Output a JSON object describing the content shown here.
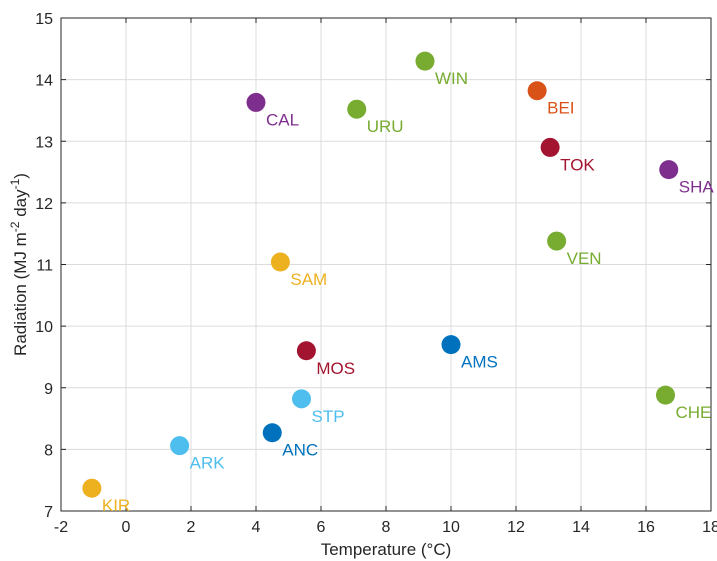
{
  "chart_data": {
    "type": "scatter",
    "xlabel": "Temperature (°C)",
    "ylabel": {
      "base": "Radiation (MJ m",
      "exp1": "-2",
      "mid": " day",
      "exp2": "-1",
      "end": ")"
    },
    "xlim": [
      -2,
      18
    ],
    "ylim": [
      7,
      15
    ],
    "xticks": [
      -2,
      0,
      2,
      4,
      6,
      8,
      10,
      12,
      14,
      16,
      18
    ],
    "yticks": [
      7,
      8,
      9,
      10,
      11,
      12,
      13,
      14,
      15
    ],
    "grid": true,
    "points": [
      {
        "label": "KIR",
        "x": -1.05,
        "y": 7.37,
        "color": "#EDB120"
      },
      {
        "label": "ARK",
        "x": 1.65,
        "y": 8.06,
        "color": "#4DBEEE"
      },
      {
        "label": "ANC",
        "x": 4.5,
        "y": 8.27,
        "color": "#0072BD"
      },
      {
        "label": "STP",
        "x": 5.4,
        "y": 8.82,
        "color": "#4DBEEE"
      },
      {
        "label": "MOS",
        "x": 5.55,
        "y": 9.6,
        "color": "#A2142F"
      },
      {
        "label": "SAM",
        "x": 4.75,
        "y": 11.04,
        "color": "#EDB120"
      },
      {
        "label": "CAL",
        "x": 4.0,
        "y": 13.63,
        "color": "#7E2F8E"
      },
      {
        "label": "URU",
        "x": 7.1,
        "y": 13.52,
        "color": "#77AC30"
      },
      {
        "label": "WIN",
        "x": 9.2,
        "y": 14.3,
        "color": "#77AC30"
      },
      {
        "label": "AMS",
        "x": 10.0,
        "y": 9.7,
        "color": "#0072BD"
      },
      {
        "label": "BEI",
        "x": 12.65,
        "y": 13.82,
        "color": "#D95319"
      },
      {
        "label": "TOK",
        "x": 13.05,
        "y": 12.9,
        "color": "#A2142F"
      },
      {
        "label": "VEN",
        "x": 13.25,
        "y": 11.38,
        "color": "#77AC30"
      },
      {
        "label": "SHA",
        "x": 16.7,
        "y": 12.54,
        "color": "#7E2F8E"
      },
      {
        "label": "CHE",
        "x": 16.6,
        "y": 8.88,
        "color": "#77AC30"
      }
    ]
  }
}
